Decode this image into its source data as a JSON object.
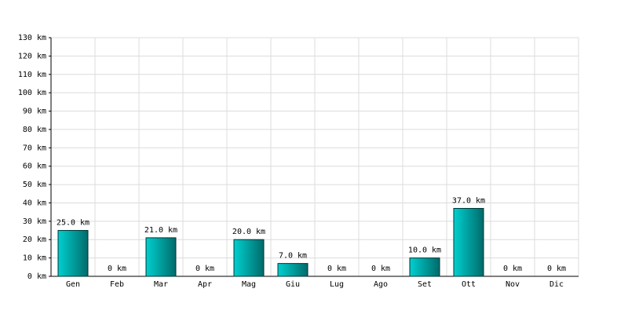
{
  "chart_data": {
    "type": "bar",
    "categories": [
      "Gen",
      "Feb",
      "Mar",
      "Apr",
      "Mag",
      "Giu",
      "Lug",
      "Ago",
      "Set",
      "Ott",
      "Nov",
      "Dic"
    ],
    "values": [
      25,
      0,
      21,
      0,
      20,
      7,
      0,
      0,
      10,
      37,
      0,
      0
    ],
    "value_labels": [
      "25.0 km",
      "0 km",
      "21.0 km",
      "0 km",
      "20.0 km",
      "7.0 km",
      "0 km",
      "0 km",
      "10.0 km",
      "37.0 km",
      "0 km",
      "0 km"
    ],
    "color": "#00d0d0",
    "ylim": [
      0,
      130
    ],
    "yticks": [
      {
        "value": 0,
        "label": "0 km"
      },
      {
        "value": 10,
        "label": "10 km"
      },
      {
        "value": 20,
        "label": "20 km"
      },
      {
        "value": 30,
        "label": "30 km"
      },
      {
        "value": 40,
        "label": "40 km"
      },
      {
        "value": 50,
        "label": "50 km"
      },
      {
        "value": 60,
        "label": "60 km"
      },
      {
        "value": 70,
        "label": "70 km"
      },
      {
        "value": 80,
        "label": "80 km"
      },
      {
        "value": 90,
        "label": "90 km"
      },
      {
        "value": 100,
        "label": "100 km"
      },
      {
        "value": 110,
        "label": "110 km"
      },
      {
        "value": 120,
        "label": "120 km"
      },
      {
        "value": 130,
        "label": "130 km"
      }
    ],
    "grid": true
  }
}
